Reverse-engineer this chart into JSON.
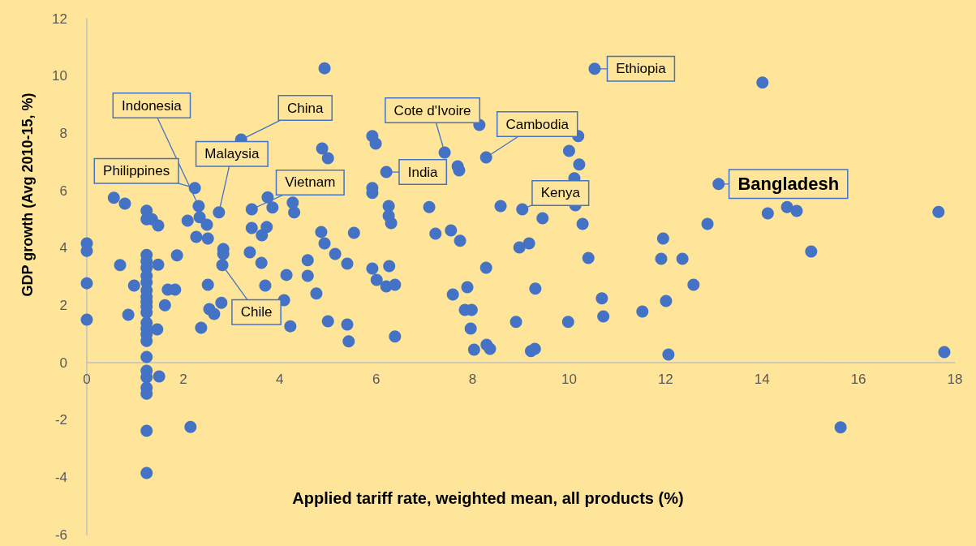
{
  "chart_data": {
    "type": "scatter",
    "xlabel": "Applied tariff rate, weighted mean, all products (%)",
    "ylabel": "GDP growth (Avg 2010-15, %)",
    "xlim": [
      0,
      18
    ],
    "xticks": [
      0,
      2,
      4,
      6,
      8,
      10,
      12,
      14,
      16,
      18
    ],
    "ylim": [
      -6,
      12
    ],
    "yticks": [
      -6,
      -4,
      -2,
      0,
      2,
      4,
      6,
      8,
      10,
      12
    ],
    "marker": "circle",
    "series": [
      {
        "color": "#4472c4",
        "x": [
          0,
          0,
          0,
          0,
          0.56,
          0.79,
          0.69,
          0.98,
          0.86,
          1.24,
          1.24,
          1.24,
          1.24,
          1.24,
          1.24,
          1.24,
          1.24,
          1.24,
          1.24,
          1.24,
          1.24,
          1.24,
          1.24,
          1.24,
          1.24,
          1.24,
          1.24,
          1.24,
          1.24,
          1.24,
          1.24,
          1.24,
          1.35,
          1.48,
          1.48,
          1.46,
          1.5,
          1.62,
          1.68,
          1.83,
          1.87,
          2.09,
          2.15,
          2.24,
          2.32,
          2.34,
          2.27,
          2.49,
          2.51,
          2.51,
          2.37,
          2.54,
          2.64,
          2.74,
          2.83,
          2.83,
          2.81,
          2.79,
          3.2,
          3.42,
          3.75,
          3.85,
          4.27,
          4.3,
          3.42,
          3.73,
          3.63,
          3.38,
          3.62,
          3.7,
          4.09,
          4.14,
          4.22,
          4.58,
          4.58,
          4.76,
          4.86,
          4.88,
          5.0,
          4.93,
          4.93,
          5.0,
          5.15,
          5.4,
          5.4,
          5.43,
          5.54,
          5.92,
          5.99,
          5.92,
          5.92,
          6.21,
          5.92,
          6.01,
          6.21,
          6.27,
          6.26,
          6.26,
          6.31,
          6.39,
          6.39,
          7.1,
          7.23,
          7.55,
          7.74,
          7.59,
          7.69,
          7.72,
          7.42,
          8.14,
          7.89,
          7.84,
          7.98,
          7.96,
          8.03,
          8.29,
          8.36,
          8.28,
          8.28,
          8.58,
          9.03,
          9.45,
          8.97,
          9.17,
          8.9,
          9.3,
          9.21,
          9.29,
          10.19,
          10.0,
          10.21,
          10.11,
          10.13,
          10.28,
          10.4,
          9.98,
          10.68,
          10.71,
          10.53,
          11.52,
          11.95,
          11.91,
          12.01,
          12.06,
          12.35,
          12.58,
          12.87,
          13.1,
          14.01,
          14.12,
          14.52,
          14.72,
          15.02,
          15.63,
          17.66,
          17.78
        ],
        "values": [
          4.16,
          3.9,
          2.77,
          1.5,
          5.75,
          5.55,
          3.4,
          2.69,
          1.67,
          5.3,
          3.76,
          3.54,
          3.31,
          3.03,
          2.8,
          2.52,
          2.29,
          2.12,
          1.95,
          1.75,
          1.39,
          1.19,
          0.99,
          0.76,
          0.2,
          -0.28,
          -0.51,
          -0.88,
          -1.08,
          -2.38,
          -3.85,
          5.0,
          5.0,
          4.78,
          3.42,
          1.16,
          -0.48,
          2.0,
          2.55,
          2.55,
          3.74,
          4.95,
          -2.24,
          6.09,
          5.46,
          5.07,
          4.39,
          4.81,
          4.33,
          2.72,
          1.22,
          1.87,
          1.7,
          5.24,
          3.96,
          3.79,
          3.4,
          2.09,
          7.78,
          5.35,
          5.77,
          5.41,
          5.58,
          5.24,
          4.7,
          4.73,
          4.44,
          3.85,
          3.48,
          2.69,
          2.18,
          3.06,
          1.27,
          3.57,
          3.03,
          2.41,
          4.56,
          7.47,
          7.13,
          10.27,
          4.16,
          1.44,
          3.79,
          3.45,
          1.33,
          0.74,
          4.53,
          7.9,
          7.64,
          6.09,
          5.92,
          6.65,
          3.28,
          2.89,
          2.66,
          3.37,
          5.46,
          5.12,
          4.87,
          2.72,
          0.91,
          5.43,
          4.5,
          4.61,
          4.25,
          2.38,
          6.85,
          6.71,
          7.33,
          8.29,
          2.63,
          1.84,
          1.84,
          1.19,
          0.45,
          0.62,
          0.48,
          3.31,
          7.16,
          5.46,
          5.35,
          5.04,
          4.02,
          4.16,
          1.42,
          2.58,
          0.4,
          0.48,
          7.9,
          7.39,
          6.91,
          6.43,
          5.49,
          4.84,
          3.65,
          1.42,
          2.24,
          1.61,
          10.25,
          1.78,
          4.33,
          3.62,
          2.15,
          0.28,
          3.62,
          2.72,
          4.84,
          6.23,
          9.77,
          5.21,
          5.43,
          5.29,
          3.88,
          -2.26,
          5.26,
          0.37
        ]
      }
    ],
    "annotations": [
      {
        "text": "Indonesia",
        "x": 2.32,
        "y": 5.46
      },
      {
        "text": "China",
        "x": 3.2,
        "y": 7.78
      },
      {
        "text": "Malaysia",
        "x": 2.74,
        "y": 5.24
      },
      {
        "text": "Philippines",
        "x": 2.24,
        "y": 6.09
      },
      {
        "text": "Vietnam",
        "x": 3.42,
        "y": 5.35
      },
      {
        "text": "Chile",
        "x": 2.81,
        "y": 3.4
      },
      {
        "text": "Cote d'Ivoire",
        "x": 7.42,
        "y": 7.33
      },
      {
        "text": "India",
        "x": 6.21,
        "y": 6.65
      },
      {
        "text": "Cambodia",
        "x": 8.28,
        "y": 7.16
      },
      {
        "text": "Ethiopia",
        "x": 10.53,
        "y": 10.25
      },
      {
        "text": "Kenya",
        "x": 9.03,
        "y": 5.35
      },
      {
        "text": "Bangladesh",
        "x": 13.1,
        "y": 6.23
      }
    ]
  }
}
